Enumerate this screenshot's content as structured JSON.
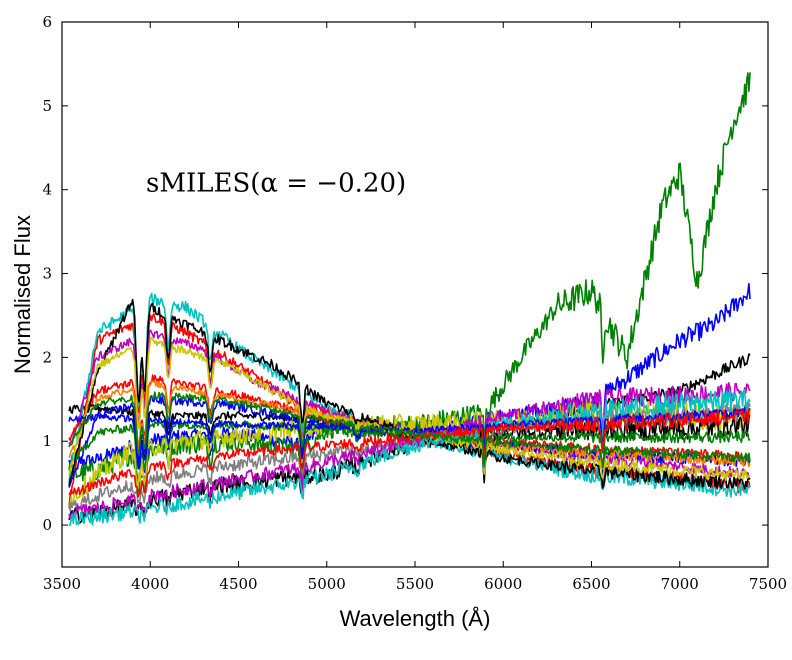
{
  "chart_data": {
    "type": "line",
    "xlabel": "Wavelength (Å)",
    "ylabel": "Normalised Flux",
    "annotation": "sMILES(α = −0.20)",
    "xlim": [
      3500,
      7500
    ],
    "ylim": [
      -0.5,
      6
    ],
    "xticks": [
      "3500",
      "4000",
      "4500",
      "5000",
      "5500",
      "6000",
      "6500",
      "7000",
      "7500"
    ],
    "yticks": [
      "0",
      "1",
      "2",
      "3",
      "4",
      "5",
      "6"
    ],
    "grid": false,
    "legend": "none",
    "series_count_shown": "many overlapping stellar spectra",
    "colors": [
      "#000000",
      "#ff0000",
      "#0000ff",
      "#008000",
      "#c8c800",
      "#c000c0",
      "#00c0c0",
      "#ff8000",
      "#808080"
    ],
    "series": [
      {
        "color": "#0000ff",
        "anchors": [
          [
            3540,
            0.75
          ],
          [
            3700,
            0.78
          ],
          [
            3900,
            0.95
          ],
          [
            4100,
            1.05
          ],
          [
            4500,
            1.1
          ],
          [
            4860,
            0.95
          ],
          [
            5000,
            1.2
          ],
          [
            5500,
            1.15
          ],
          [
            6000,
            1.3
          ],
          [
            6500,
            1.45
          ],
          [
            6800,
            1.9
          ],
          [
            7000,
            2.2
          ],
          [
            7200,
            2.4
          ],
          [
            7400,
            2.8
          ]
        ],
        "noise": 0.08
      },
      {
        "color": "#008000",
        "anchors": [
          [
            3540,
            0.6
          ],
          [
            3700,
            0.65
          ],
          [
            3900,
            0.85
          ],
          [
            4100,
            0.95
          ],
          [
            4500,
            1.0
          ],
          [
            4860,
            0.9
          ],
          [
            5000,
            1.15
          ],
          [
            5500,
            1.2
          ],
          [
            5900,
            1.35
          ],
          [
            6100,
            2.0
          ],
          [
            6300,
            2.6
          ],
          [
            6500,
            2.8
          ],
          [
            6700,
            2.0
          ],
          [
            6900,
            3.8
          ],
          [
            7000,
            4.2
          ],
          [
            7100,
            2.9
          ],
          [
            7200,
            4.0
          ],
          [
            7300,
            4.8
          ],
          [
            7400,
            5.3
          ]
        ],
        "noise": 0.12
      },
      {
        "color": "#000000",
        "anchors": [
          [
            3540,
            1.38
          ],
          [
            3700,
            1.4
          ],
          [
            3900,
            1.35
          ],
          [
            4200,
            1.3
          ],
          [
            4600,
            1.3
          ],
          [
            5000,
            1.25
          ],
          [
            5500,
            1.1
          ],
          [
            6000,
            1.15
          ],
          [
            6500,
            1.4
          ],
          [
            7000,
            1.6
          ],
          [
            7400,
            2.0
          ]
        ],
        "noise": 0.05
      },
      {
        "color": "#ff0000",
        "anchors": [
          [
            3540,
            0.25
          ],
          [
            3700,
            2.2
          ],
          [
            3900,
            2.4
          ],
          [
            4000,
            2.5
          ],
          [
            4200,
            2.3
          ],
          [
            4500,
            1.9
          ],
          [
            4860,
            1.4
          ],
          [
            5000,
            1.35
          ],
          [
            5500,
            1.05
          ],
          [
            6000,
            0.85
          ],
          [
            6500,
            0.65
          ],
          [
            7000,
            0.55
          ],
          [
            7400,
            0.45
          ]
        ],
        "noise": 0.06
      },
      {
        "color": "#00c0c0",
        "anchors": [
          [
            3540,
            0.55
          ],
          [
            3700,
            2.3
          ],
          [
            4000,
            2.7
          ],
          [
            4200,
            2.6
          ],
          [
            4500,
            2.1
          ],
          [
            4860,
            1.6
          ],
          [
            5000,
            1.4
          ],
          [
            5500,
            1.05
          ],
          [
            6000,
            0.8
          ],
          [
            6500,
            0.6
          ],
          [
            7000,
            0.5
          ],
          [
            7400,
            0.4
          ]
        ],
        "noise": 0.07
      },
      {
        "color": "#c000c0",
        "anchors": [
          [
            3540,
            0.9
          ],
          [
            3700,
            2.0
          ],
          [
            4000,
            2.3
          ],
          [
            4300,
            2.1
          ],
          [
            4600,
            1.7
          ],
          [
            5000,
            1.35
          ],
          [
            5500,
            1.1
          ],
          [
            6000,
            0.95
          ],
          [
            6500,
            0.8
          ],
          [
            7000,
            0.7
          ],
          [
            7400,
            0.6
          ]
        ],
        "noise": 0.05
      },
      {
        "color": "#c8c800",
        "anchors": [
          [
            3540,
            0.3
          ],
          [
            3700,
            0.6
          ],
          [
            3900,
            0.9
          ],
          [
            4200,
            1.0
          ],
          [
            4600,
            1.1
          ],
          [
            5000,
            1.2
          ],
          [
            5500,
            1.2
          ],
          [
            6000,
            1.25
          ],
          [
            6500,
            1.35
          ],
          [
            7000,
            1.3
          ],
          [
            7400,
            1.25
          ]
        ],
        "noise": 0.12
      },
      {
        "color": "#000000",
        "anchors": [
          [
            3540,
            0.1
          ],
          [
            3700,
            0.15
          ],
          [
            4000,
            0.3
          ],
          [
            4300,
            0.45
          ],
          [
            4700,
            0.55
          ],
          [
            5000,
            0.6
          ],
          [
            5500,
            1.0
          ],
          [
            6000,
            1.1
          ],
          [
            6500,
            1.15
          ],
          [
            7000,
            1.15
          ],
          [
            7400,
            1.2
          ]
        ],
        "noise": 0.1
      },
      {
        "color": "#ff0000",
        "anchors": [
          [
            3540,
            1.0
          ],
          [
            3700,
            1.6
          ],
          [
            4000,
            1.75
          ],
          [
            4400,
            1.6
          ],
          [
            4860,
            1.35
          ],
          [
            5000,
            1.25
          ],
          [
            5500,
            1.1
          ],
          [
            6000,
            1.0
          ],
          [
            6500,
            0.9
          ],
          [
            7000,
            0.85
          ],
          [
            7400,
            0.8
          ]
        ],
        "noise": 0.05
      },
      {
        "color": "#0000ff",
        "anchors": [
          [
            3540,
            0.45
          ],
          [
            3700,
            1.3
          ],
          [
            4000,
            1.5
          ],
          [
            4400,
            1.45
          ],
          [
            5000,
            1.2
          ],
          [
            5500,
            1.05
          ],
          [
            6000,
            0.95
          ],
          [
            6500,
            0.85
          ],
          [
            7000,
            0.8
          ],
          [
            7400,
            0.75
          ]
        ],
        "noise": 0.05
      },
      {
        "color": "#008000",
        "anchors": [
          [
            3540,
            0.7
          ],
          [
            3700,
            1.1
          ],
          [
            4000,
            1.2
          ],
          [
            4500,
            1.2
          ],
          [
            5000,
            1.15
          ],
          [
            5500,
            1.05
          ],
          [
            6000,
            1.05
          ],
          [
            6500,
            1.05
          ],
          [
            7000,
            1.05
          ],
          [
            7400,
            1.05
          ]
        ],
        "noise": 0.05
      },
      {
        "color": "#808080",
        "anchors": [
          [
            3540,
            0.2
          ],
          [
            3700,
            0.35
          ],
          [
            4000,
            0.55
          ],
          [
            4400,
            0.7
          ],
          [
            5000,
            0.85
          ],
          [
            5500,
            1.0
          ],
          [
            6000,
            1.15
          ],
          [
            6500,
            1.25
          ],
          [
            7000,
            1.3
          ],
          [
            7400,
            1.35
          ]
        ],
        "noise": 0.08
      },
      {
        "color": "#c000c0",
        "anchors": [
          [
            3540,
            0.15
          ],
          [
            3700,
            0.2
          ],
          [
            4000,
            0.35
          ],
          [
            4500,
            0.55
          ],
          [
            5000,
            0.75
          ],
          [
            5500,
            1.0
          ],
          [
            6000,
            1.3
          ],
          [
            6500,
            1.5
          ],
          [
            7000,
            1.55
          ],
          [
            7400,
            1.6
          ]
        ],
        "noise": 0.08
      },
      {
        "color": "#ff8000",
        "anchors": [
          [
            3540,
            0.8
          ],
          [
            3700,
            1.5
          ],
          [
            4000,
            1.7
          ],
          [
            4500,
            1.5
          ],
          [
            5000,
            1.3
          ],
          [
            5500,
            1.1
          ],
          [
            6000,
            0.95
          ],
          [
            6500,
            0.85
          ],
          [
            7000,
            0.8
          ],
          [
            7400,
            0.75
          ]
        ],
        "noise": 0.04
      },
      {
        "color": "#000000",
        "anchors": [
          [
            3540,
            0.5
          ],
          [
            3700,
            1.8
          ],
          [
            3900,
            2.7
          ],
          [
            4000,
            2.6
          ],
          [
            4300,
            2.3
          ],
          [
            4700,
            1.9
          ],
          [
            5000,
            1.45
          ],
          [
            5500,
            1.05
          ],
          [
            6000,
            0.8
          ],
          [
            6500,
            0.65
          ],
          [
            7000,
            0.55
          ],
          [
            7400,
            0.5
          ]
        ],
        "noise": 0.06
      },
      {
        "color": "#c8c800",
        "anchors": [
          [
            3540,
            0.6
          ],
          [
            3700,
            1.9
          ],
          [
            4000,
            2.2
          ],
          [
            4400,
            1.95
          ],
          [
            4860,
            1.4
          ],
          [
            5000,
            1.3
          ],
          [
            5500,
            1.08
          ],
          [
            6000,
            0.9
          ],
          [
            6500,
            0.75
          ],
          [
            7000,
            0.65
          ],
          [
            7400,
            0.58
          ]
        ],
        "noise": 0.05
      },
      {
        "color": "#00c0c0",
        "anchors": [
          [
            3540,
            0.05
          ],
          [
            3700,
            0.1
          ],
          [
            4000,
            0.2
          ],
          [
            4400,
            0.35
          ],
          [
            4800,
            0.5
          ],
          [
            5000,
            0.6
          ],
          [
            5500,
            0.95
          ],
          [
            6000,
            1.2
          ],
          [
            6500,
            1.35
          ],
          [
            7000,
            1.45
          ],
          [
            7400,
            1.5
          ]
        ],
        "noise": 0.09
      },
      {
        "color": "#0000ff",
        "anchors": [
          [
            3540,
            1.25
          ],
          [
            3700,
            1.3
          ],
          [
            4000,
            1.25
          ],
          [
            4500,
            1.2
          ],
          [
            5000,
            1.18
          ],
          [
            5500,
            1.12
          ],
          [
            6000,
            1.2
          ],
          [
            6500,
            1.25
          ],
          [
            7000,
            1.3
          ],
          [
            7400,
            1.35
          ]
        ],
        "noise": 0.04
      },
      {
        "color": "#ff0000",
        "anchors": [
          [
            3540,
            0.35
          ],
          [
            3700,
            0.5
          ],
          [
            4000,
            0.7
          ],
          [
            4500,
            0.85
          ],
          [
            5000,
            0.95
          ],
          [
            5500,
            1.05
          ],
          [
            6000,
            1.15
          ],
          [
            6500,
            1.2
          ],
          [
            7000,
            1.25
          ],
          [
            7400,
            1.3
          ]
        ],
        "noise": 0.06
      },
      {
        "color": "#008000",
        "anchors": [
          [
            3540,
            0.95
          ],
          [
            3700,
            1.45
          ],
          [
            4000,
            1.55
          ],
          [
            4400,
            1.5
          ],
          [
            5000,
            1.25
          ],
          [
            5500,
            1.08
          ],
          [
            6000,
            0.98
          ],
          [
            6500,
            0.9
          ],
          [
            7000,
            0.85
          ],
          [
            7400,
            0.8
          ]
        ],
        "noise": 0.04
      }
    ]
  }
}
